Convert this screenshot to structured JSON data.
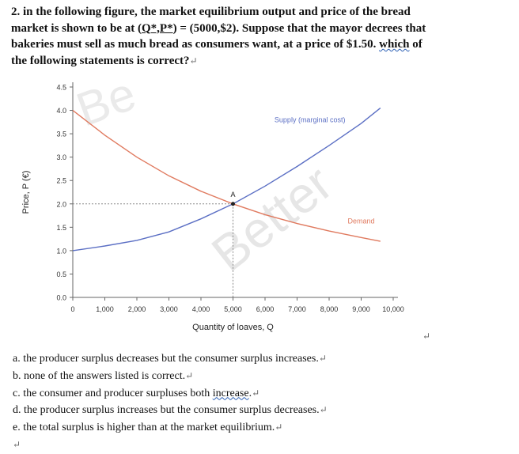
{
  "question": {
    "line1": "2. in the following figure, the market equilibrium output and price of the bread",
    "line2_a": "market is shown to be at (",
    "line2_q": "Q*,P*",
    "line2_b": ") = (5000,$2). Suppose that the mayor decrees that",
    "line3": "bakeries must sell as much bread as consumers want, at a price of $1.50.",
    "line3_which": "which",
    "line3_of": "of",
    "line4": "the following statements is correct?",
    "return_glyph": "↵"
  },
  "figure": {
    "watermark_text": "Better",
    "watermark_partial": "Be"
  },
  "chart_data": {
    "type": "line",
    "xlabel": "Quantity of loaves, Q",
    "ylabel": "Price, P (€)",
    "xlim": [
      0,
      10000
    ],
    "ylim": [
      0,
      4.5
    ],
    "x_ticks": [
      "0",
      "1,000",
      "2,000",
      "3,000",
      "4,000",
      "5,000",
      "6,000",
      "7,000",
      "8,000",
      "9,000",
      "10,000"
    ],
    "y_ticks": [
      "0.0",
      "0.5",
      "1.0",
      "1.5",
      "2.0",
      "2.5",
      "3.0",
      "3.5",
      "4.0",
      "4.5"
    ],
    "grid": false,
    "series": [
      {
        "name": "Supply (marginal cost)",
        "color": "#5b6fc4",
        "x": [
          0,
          1000,
          2000,
          3000,
          4000,
          5000,
          6000,
          7000,
          8000,
          9000,
          9600
        ],
        "y": [
          1.0,
          1.1,
          1.22,
          1.4,
          1.68,
          2.0,
          2.38,
          2.8,
          3.25,
          3.72,
          4.05
        ]
      },
      {
        "name": "Demand",
        "color": "#e07a5f",
        "x": [
          0,
          1000,
          2000,
          3000,
          4000,
          5000,
          6000,
          7000,
          8000,
          9000,
          9600
        ],
        "y": [
          4.0,
          3.47,
          3.0,
          2.6,
          2.27,
          2.0,
          1.77,
          1.58,
          1.42,
          1.28,
          1.2
        ]
      }
    ],
    "equilibrium": {
      "label": "A",
      "x": 5000,
      "y": 2.0
    }
  },
  "answers": [
    {
      "letter": "a.",
      "text": "the producer surplus decreases but the consumer surplus increases."
    },
    {
      "letter": "b.",
      "text": "none of the answers listed is correct."
    },
    {
      "letter": "c.",
      "text": "the consumer and producer surpluses both ",
      "underlined": "increase",
      "tail": "."
    },
    {
      "letter": "d.",
      "text": "the producer surplus increases but the consumer surplus decreases."
    },
    {
      "letter": "e.",
      "text": "the total surplus is higher than at the market equilibrium."
    }
  ]
}
